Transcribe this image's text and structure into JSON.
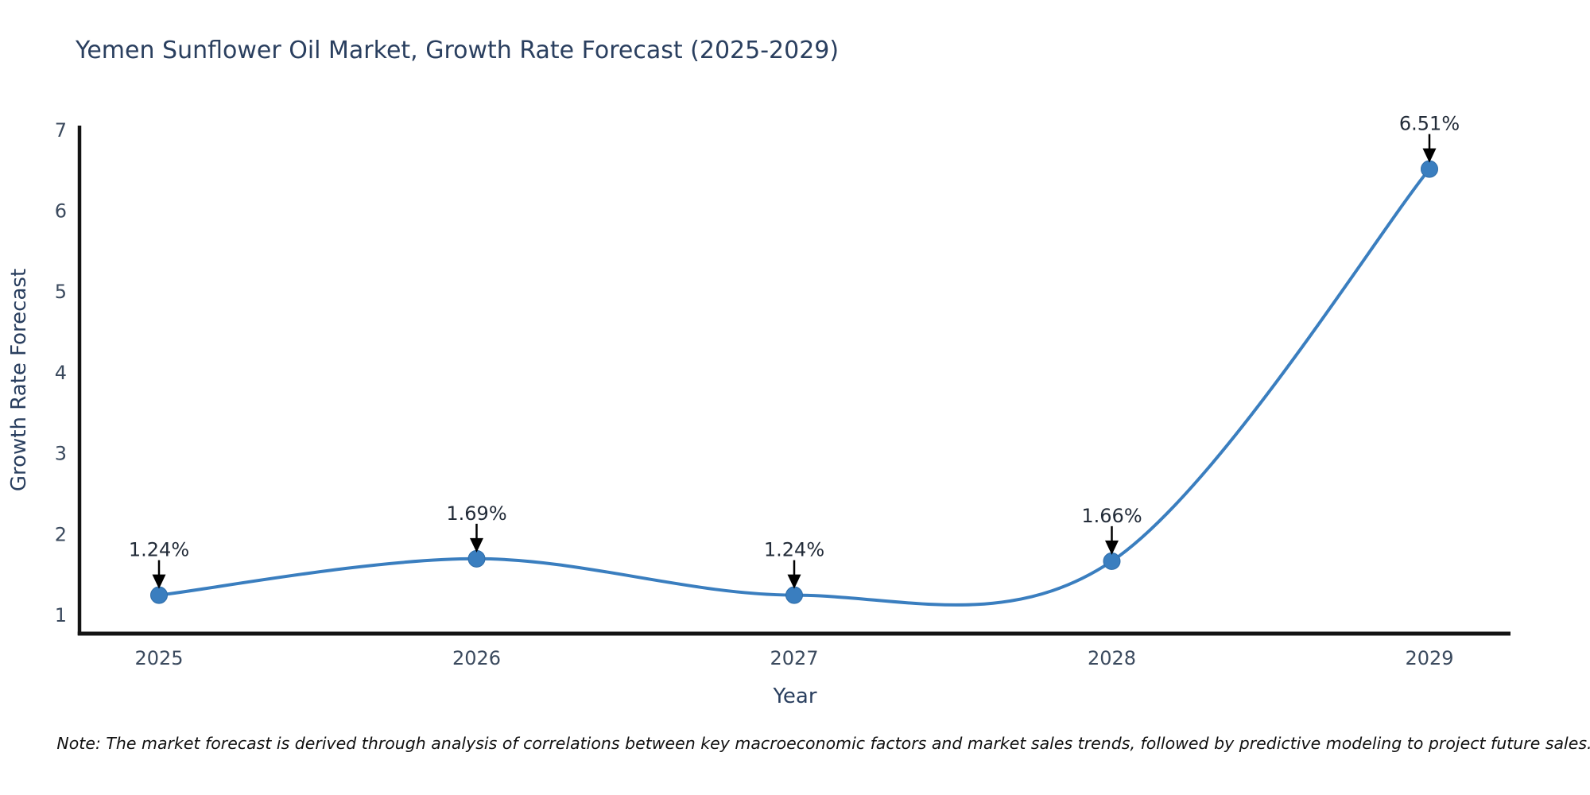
{
  "title": "Yemen Sunflower Oil Market, Growth Rate Forecast (2025-2029)",
  "note": "Note: The market forecast is derived through analysis of correlations between key macroeconomic factors and market sales trends, followed by predictive modeling to project future sales.",
  "chart_data": {
    "type": "line",
    "title": "Yemen Sunflower Oil Market, Growth Rate Forecast (2025-2029)",
    "xlabel": "Year",
    "ylabel": "Growth Rate Forecast",
    "x": [
      2025,
      2026,
      2027,
      2028,
      2029
    ],
    "x_tick_labels": [
      "2025",
      "2026",
      "2027",
      "2028",
      "2029"
    ],
    "series": [
      {
        "name": "Growth Rate Forecast",
        "values": [
          1.24,
          1.69,
          1.24,
          1.66,
          6.51
        ]
      }
    ],
    "point_labels": [
      "1.24%",
      "1.69%",
      "1.24%",
      "1.66%",
      "6.51%"
    ],
    "y_ticks": [
      1,
      2,
      3,
      4,
      5,
      6,
      7
    ],
    "ylim": [
      0.73,
      7.05
    ],
    "xlim": [
      2024.75,
      2029.26
    ],
    "grid": false,
    "legend_position": "none",
    "line_shape": "spline",
    "annotation_arrows": true,
    "colors": {
      "line": "#3a7ebf",
      "marker": "#3a7ebf",
      "marker_edge": "#2e6ca8",
      "axis": "#141414",
      "title_text": "#2a3f5f",
      "axis_title_text": "#2a3f5f",
      "tick_text": "#3b4a5e",
      "annotation_text": "#222b38",
      "arrow": "#000000",
      "note_text": "#111111",
      "background": "#ffffff"
    }
  }
}
